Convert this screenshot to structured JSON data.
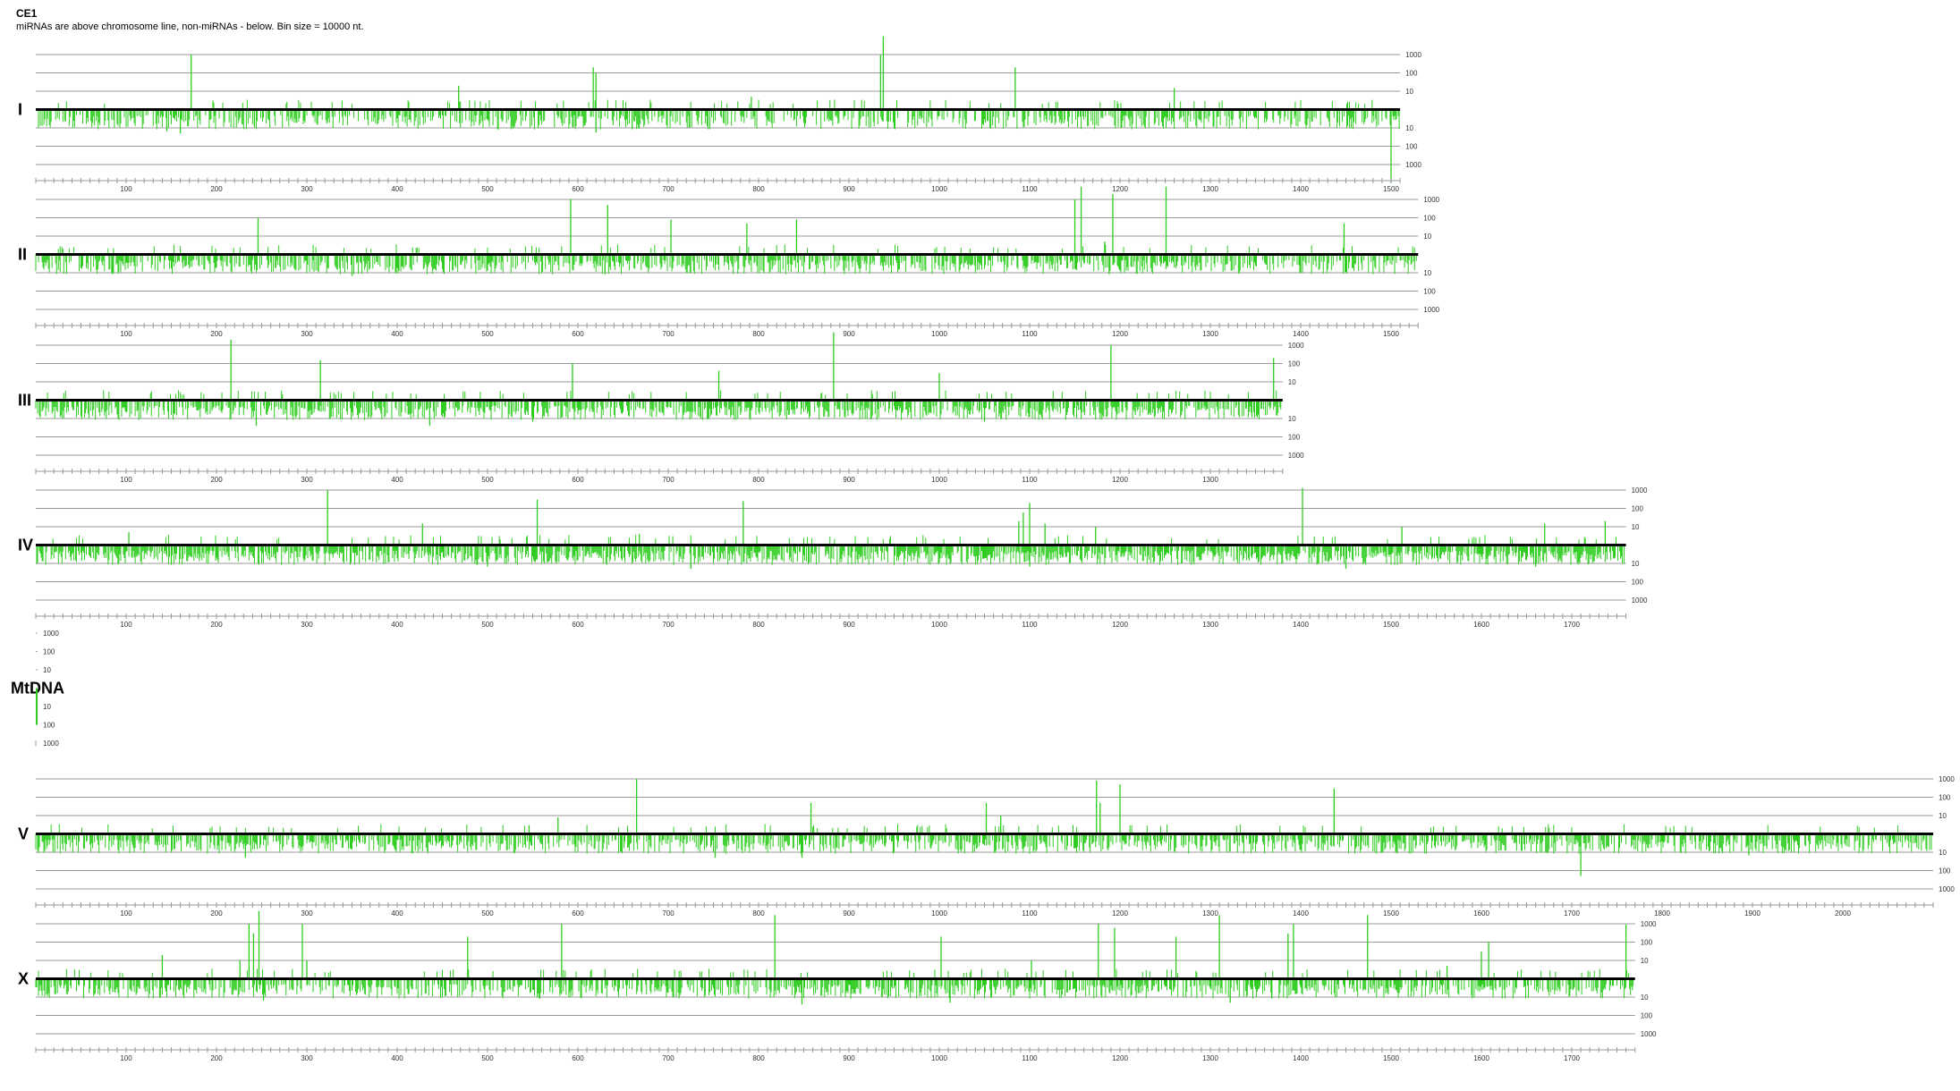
{
  "header": {
    "title": "CE1",
    "subtitle": "miRNAs are above chromosome line, non-miRNAs - below. Bin size = 10000 nt."
  },
  "colors": {
    "bars": "#2ecc1f",
    "axis_line": "#000000",
    "grid": "#999999",
    "text": "#333333"
  },
  "chart_data": [
    {
      "type": "bar",
      "chromosome": "I",
      "x_max_bins": 1510,
      "x_tick_labels": [
        "100",
        "200",
        "300",
        "400",
        "500",
        "600",
        "700",
        "800",
        "900",
        "1000",
        "1100",
        "1200",
        "1300",
        "1400",
        "1500"
      ],
      "y_tick_labels_up": [
        "10",
        "100",
        "1000"
      ],
      "y_tick_labels_down": [
        "10",
        "100",
        "1000"
      ],
      "y_scale": "log",
      "mirna_peaks": [
        [
          172,
          1000
        ],
        [
          468,
          20
        ],
        [
          617,
          200
        ],
        [
          620,
          100
        ],
        [
          792,
          5
        ],
        [
          935,
          1000
        ],
        [
          938,
          10000
        ],
        [
          1084,
          200
        ],
        [
          1260,
          15
        ]
      ],
      "non_mirna_peaks": [
        [
          145,
          15
        ],
        [
          160,
          20
        ],
        [
          242,
          8
        ],
        [
          620,
          18
        ],
        [
          660,
          12
        ],
        [
          1500,
          10000
        ]
      ],
      "mirna_bg_density": 0.05,
      "non_mirna_bg_density": 0.5
    },
    {
      "type": "bar",
      "chromosome": "II",
      "x_max_bins": 1530,
      "x_tick_labels": [
        "100",
        "200",
        "300",
        "400",
        "500",
        "600",
        "700",
        "800",
        "900",
        "1000",
        "1100",
        "1200",
        "1300",
        "1400",
        "1500"
      ],
      "y_tick_labels_up": [
        "10",
        "100",
        "1000"
      ],
      "y_tick_labels_down": [
        "10",
        "100",
        "1000"
      ],
      "y_scale": "log",
      "mirna_peaks": [
        [
          246,
          100
        ],
        [
          592,
          1000
        ],
        [
          633,
          500
        ],
        [
          703,
          80
        ],
        [
          787,
          50
        ],
        [
          842,
          80
        ],
        [
          1150,
          1000
        ],
        [
          1157,
          5000
        ],
        [
          1183,
          5
        ],
        [
          1192,
          2000
        ],
        [
          1251,
          5000
        ],
        [
          1448,
          50
        ]
      ],
      "non_mirna_peaks": [
        [
          85,
          12
        ],
        [
          350,
          15
        ],
        [
          630,
          12
        ],
        [
          1188,
          12
        ],
        [
          1400,
          10
        ]
      ],
      "mirna_bg_density": 0.05,
      "non_mirna_bg_density": 0.55
    },
    {
      "type": "bar",
      "chromosome": "III",
      "x_max_bins": 1380,
      "x_tick_labels": [
        "100",
        "200",
        "300",
        "400",
        "500",
        "600",
        "700",
        "800",
        "900",
        "1000",
        "1100",
        "1200",
        "1300"
      ],
      "y_tick_labels_up": [
        "10",
        "100",
        "1000"
      ],
      "y_tick_labels_down": [
        "10",
        "100",
        "1000"
      ],
      "y_scale": "log",
      "mirna_peaks": [
        [
          216,
          2000
        ],
        [
          315,
          150
        ],
        [
          594,
          100
        ],
        [
          756,
          40
        ],
        [
          883,
          5000
        ],
        [
          1000,
          30
        ],
        [
          1190,
          1000
        ],
        [
          1370,
          200
        ]
      ],
      "non_mirna_peaks": [
        [
          244,
          25
        ],
        [
          436,
          25
        ],
        [
          550,
          15
        ],
        [
          1050,
          15
        ]
      ],
      "mirna_bg_density": 0.05,
      "non_mirna_bg_density": 0.6
    },
    {
      "type": "bar",
      "chromosome": "IV",
      "x_max_bins": 1760,
      "x_tick_labels": [
        "100",
        "200",
        "300",
        "400",
        "500",
        "600",
        "700",
        "800",
        "900",
        "1000",
        "1100",
        "1200",
        "1300",
        "1400",
        "1500",
        "1600",
        "1700"
      ],
      "y_tick_labels_up": [
        "10",
        "100",
        "1000"
      ],
      "y_tick_labels_down": [
        "10",
        "100",
        "1000"
      ],
      "y_scale": "log",
      "mirna_peaks": [
        [
          103,
          5
        ],
        [
          323,
          1000
        ],
        [
          428,
          15
        ],
        [
          555,
          300
        ],
        [
          668,
          4
        ],
        [
          783,
          250
        ],
        [
          1088,
          20
        ],
        [
          1093,
          60
        ],
        [
          1100,
          200
        ],
        [
          1117,
          15
        ],
        [
          1173,
          10
        ],
        [
          1402,
          1300
        ],
        [
          1512,
          10
        ],
        [
          1670,
          15
        ],
        [
          1737,
          20
        ]
      ],
      "non_mirna_peaks": [
        [
          150,
          12
        ],
        [
          500,
          15
        ],
        [
          725,
          20
        ],
        [
          1100,
          15
        ],
        [
          1450,
          20
        ],
        [
          1660,
          15
        ]
      ],
      "mirna_bg_density": 0.05,
      "non_mirna_bg_density": 0.7
    },
    {
      "type": "bar",
      "chromosome": "MtDNA",
      "x_max_bins": 2,
      "x_tick_labels": [],
      "y_tick_labels_up": [
        "10",
        "100",
        "1000"
      ],
      "y_tick_labels_down": [
        "10",
        "100",
        "1000"
      ],
      "y_scale": "log",
      "mirna_peaks": [],
      "non_mirna_peaks": [
        [
          1,
          100
        ]
      ],
      "mirna_bg_density": 0,
      "non_mirna_bg_density": 0
    },
    {
      "type": "bar",
      "chromosome": "V",
      "x_max_bins": 2100,
      "x_tick_labels": [
        "100",
        "200",
        "300",
        "400",
        "500",
        "600",
        "700",
        "800",
        "900",
        "1000",
        "1100",
        "1200",
        "1300",
        "1400",
        "1500",
        "1600",
        "1700",
        "1800",
        "1900",
        "2000"
      ],
      "y_tick_labels_up": [
        "10",
        "100",
        "1000"
      ],
      "y_tick_labels_down": [
        "10",
        "100",
        "1000"
      ],
      "y_scale": "log",
      "mirna_peaks": [
        [
          546,
          3
        ],
        [
          578,
          8
        ],
        [
          665,
          1000
        ],
        [
          858,
          50
        ],
        [
          1052,
          50
        ],
        [
          1068,
          10
        ],
        [
          1174,
          800
        ],
        [
          1178,
          50
        ],
        [
          1200,
          500
        ],
        [
          1437,
          300
        ]
      ],
      "non_mirna_peaks": [
        [
          232,
          20
        ],
        [
          752,
          20
        ],
        [
          848,
          20
        ],
        [
          1710,
          200
        ],
        [
          1896,
          15
        ]
      ],
      "mirna_bg_density": 0.04,
      "non_mirna_bg_density": 0.55
    },
    {
      "type": "bar",
      "chromosome": "X",
      "x_max_bins": 1770,
      "x_tick_labels": [
        "100",
        "200",
        "300",
        "400",
        "500",
        "600",
        "700",
        "800",
        "900",
        "1000",
        "1100",
        "1200",
        "1300",
        "1400",
        "1500",
        "1600",
        "1700"
      ],
      "y_tick_labels_up": [
        "10",
        "100",
        "1000"
      ],
      "y_tick_labels_down": [
        "10",
        "100",
        "1000"
      ],
      "y_scale": "log",
      "mirna_peaks": [
        [
          140,
          20
        ],
        [
          226,
          10
        ],
        [
          236,
          1000
        ],
        [
          241,
          300
        ],
        [
          247,
          5000
        ],
        [
          295,
          1000
        ],
        [
          300,
          10
        ],
        [
          478,
          200
        ],
        [
          582,
          1000
        ],
        [
          818,
          3000
        ],
        [
          1002,
          200
        ],
        [
          1102,
          10
        ],
        [
          1176,
          1000
        ],
        [
          1194,
          600
        ],
        [
          1262,
          200
        ],
        [
          1310,
          3000
        ],
        [
          1386,
          300
        ],
        [
          1392,
          1000
        ],
        [
          1474,
          3000
        ],
        [
          1562,
          5
        ],
        [
          1608,
          100
        ],
        [
          1600,
          30
        ],
        [
          1760,
          900
        ]
      ],
      "non_mirna_peaks": [
        [
          252,
          15
        ],
        [
          848,
          25
        ],
        [
          1012,
          20
        ],
        [
          1322,
          20
        ],
        [
          1368,
          12
        ]
      ],
      "mirna_bg_density": 0.05,
      "non_mirna_bg_density": 0.55
    }
  ]
}
